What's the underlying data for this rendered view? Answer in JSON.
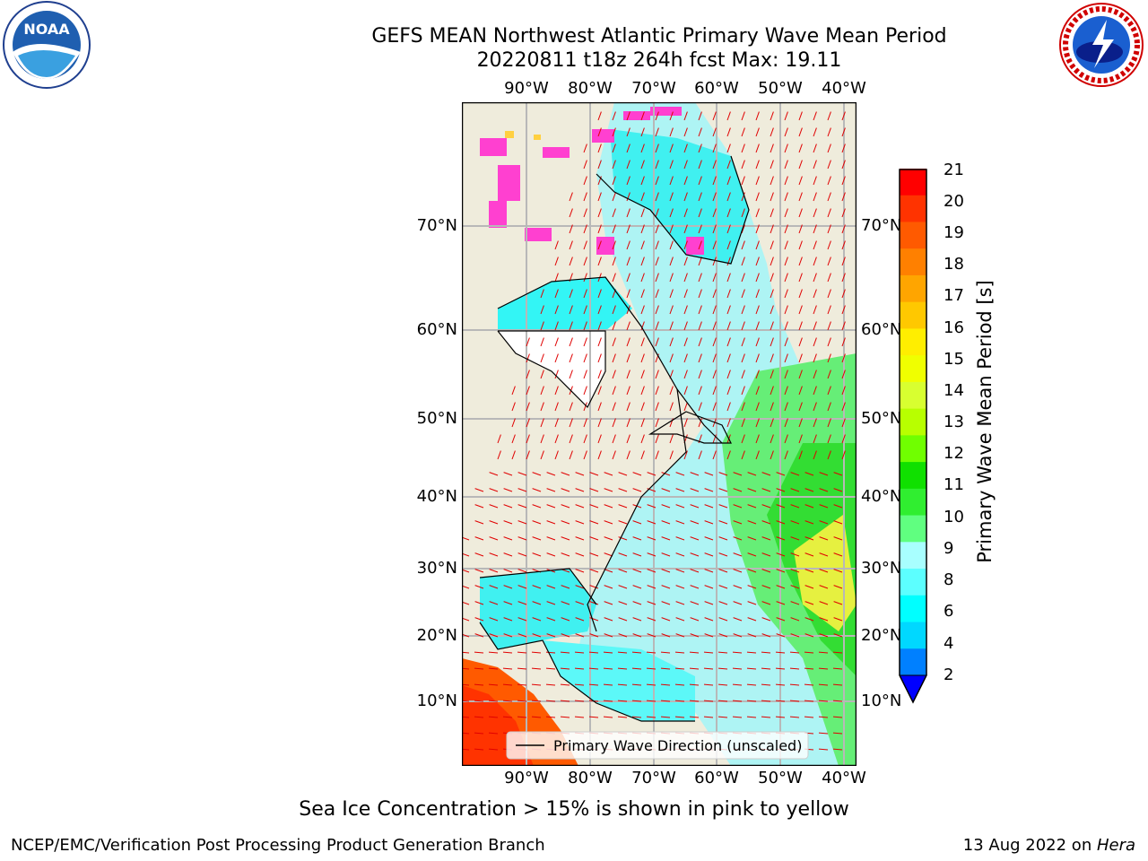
{
  "title": {
    "line1": "GEFS MEAN Northwest Atlantic Primary Wave Mean Period",
    "line2": "20220811 t18z 264h fcst   Max: 19.11"
  },
  "axes": {
    "lon_ticks": [
      "90°W",
      "80°W",
      "70°W",
      "60°W",
      "50°W",
      "40°W"
    ],
    "lat_ticks": [
      "70°N",
      "60°N",
      "50°N",
      "40°N",
      "30°N",
      "20°N",
      "10°N"
    ]
  },
  "legend": {
    "label": "Primary Wave Direction (unscaled)"
  },
  "colorbar": {
    "label": "Primary Wave Mean Period [s]",
    "ticks": [
      "21",
      "20",
      "19",
      "18",
      "17",
      "16",
      "15",
      "14",
      "13",
      "12",
      "11",
      "10",
      "9",
      "8",
      "6",
      "4",
      "2"
    ],
    "colors": [
      "#ff0000",
      "#ff3300",
      "#ff5a00",
      "#ff8000",
      "#ffa500",
      "#ffc800",
      "#ffee00",
      "#f0ff00",
      "#d8ff30",
      "#b8ff00",
      "#70ff00",
      "#10e000",
      "#30ee30",
      "#60ff80",
      "#a8ffff",
      "#5cffff",
      "#00ffff",
      "#00d8ff",
      "#0080ff"
    ],
    "extend_color": "#0000ff"
  },
  "note": "Sea Ice Concentration > 15% is shown in pink to yellow",
  "footer": {
    "left": "NCEP/EMC/Verification Post Processing Product Generation Branch",
    "date": "13 Aug 2022 on ",
    "host": "Hera"
  },
  "logos": {
    "noaa": {
      "text": "NOAA"
    },
    "nws": {
      "text": "NATIONAL WEATHER SERVICE"
    }
  }
}
